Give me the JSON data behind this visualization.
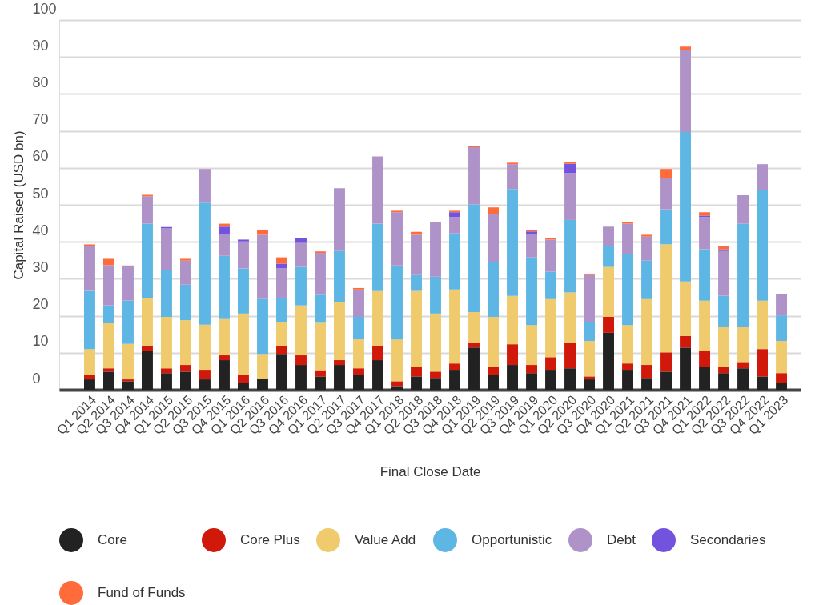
{
  "chart_data": {
    "type": "bar",
    "stacked": true,
    "xlabel": "Final Close Date",
    "ylabel": "Capital Raised (USD bn)",
    "categories": [
      "Q1 2014",
      "Q2 2014",
      "Q3 2014",
      "Q4 2014",
      "Q1 2015",
      "Q2 2015",
      "Q3 2015",
      "Q4 2015",
      "Q1 2016",
      "Q2 2016",
      "Q3 2016",
      "Q4 2016",
      "Q1 2017",
      "Q2 2017",
      "Q3 2017",
      "Q4 2017",
      "Q1 2018",
      "Q2 2018",
      "Q3 2018",
      "Q4 2018",
      "Q1 2019",
      "Q2 2019",
      "Q3 2019",
      "Q4 2019",
      "Q1 2020",
      "Q2 2020",
      "Q3 2020",
      "Q4 2020",
      "Q1 2021",
      "Q2 2021",
      "Q3 2021",
      "Q4 2021",
      "Q1 2022",
      "Q2 2022",
      "Q3 2022",
      "Q4 2022",
      "Q1 2023"
    ],
    "series": [
      {
        "name": "Core",
        "color": "#222222",
        "values": [
          2.8,
          4.9,
          2.3,
          10.6,
          4.5,
          4.9,
          2.8,
          8.0,
          1.9,
          2.8,
          9.7,
          6.7,
          3.6,
          6.7,
          4.1,
          8.0,
          1.0,
          3.6,
          3.2,
          5.4,
          11.4,
          4.1,
          6.7,
          4.5,
          5.4,
          5.8,
          2.8,
          15.4,
          5.4,
          3.2,
          4.9,
          11.4,
          6.2,
          4.5,
          5.8,
          3.6,
          1.9
        ]
      },
      {
        "name": "Core Plus",
        "color": "#d0190a",
        "values": [
          1.3,
          0.9,
          0.5,
          1.3,
          1.3,
          1.8,
          2.6,
          1.3,
          2.2,
          null,
          2.2,
          2.6,
          1.7,
          1.3,
          1.7,
          3.9,
          1.3,
          2.6,
          1.7,
          1.7,
          1.3,
          2.1,
          5.6,
          2.2,
          3.4,
          7.0,
          0.8,
          4.3,
          1.7,
          3.5,
          5.2,
          3.1,
          4.4,
          1.7,
          1.7,
          7.4,
          2.6
        ]
      },
      {
        "name": "Value Add",
        "color": "#efcb6d",
        "values": [
          6.9,
          12.2,
          9.6,
          13.0,
          13.9,
          12.1,
          12.2,
          10.0,
          16.5,
          6.9,
          6.5,
          13.5,
          13.0,
          15.6,
          7.8,
          14.8,
          11.3,
          20.5,
          15.7,
          20.0,
          8.3,
          13.5,
          13.1,
          10.8,
          15.7,
          13.5,
          9.6,
          13.5,
          10.4,
          17.8,
          29.2,
          14.8,
          13.5,
          10.9,
          9.6,
          13.1,
          8.7
        ]
      },
      {
        "name": "Opportunistic",
        "color": "#5eb6e4",
        "values": [
          15.7,
          4.8,
          11.7,
          20.0,
          12.6,
          9.6,
          33.0,
          16.9,
          12.2,
          14.8,
          6.5,
          10.4,
          7.4,
          13.9,
          6.1,
          18.2,
          20.0,
          4.3,
          10.0,
          15.2,
          29.1,
          14.8,
          28.9,
          18.3,
          7.4,
          19.6,
          5.2,
          5.6,
          19.2,
          10.4,
          9.5,
          40.4,
          13.9,
          8.3,
          27.8,
          29.8,
          6.9
        ]
      },
      {
        "name": "Debt",
        "color": "#ae92c8",
        "values": [
          12.1,
          10.9,
          9.5,
          7.4,
          11.3,
          6.5,
          9.1,
          5.7,
          7.3,
          17.4,
          7.9,
          6.5,
          11.3,
          17.0,
          7.4,
          18.2,
          14.4,
          10.9,
          14.8,
          4.4,
          15.5,
          13.0,
          6.7,
          6.1,
          8.7,
          12.7,
          12.6,
          5.3,
          8.2,
          6.5,
          8.4,
          22.2,
          8.7,
          12.1,
          7.7,
          7.1,
          5.7
        ]
      },
      {
        "name": "Secondaries",
        "color": "#7352de",
        "values": [
          null,
          null,
          null,
          null,
          0.4,
          null,
          null,
          2.2,
          0.5,
          null,
          1.3,
          1.3,
          null,
          null,
          null,
          null,
          null,
          null,
          null,
          1.3,
          null,
          null,
          null,
          0.9,
          null,
          2.5,
          null,
          null,
          null,
          null,
          null,
          null,
          0.4,
          0.5,
          null,
          null,
          null
        ]
      },
      {
        "name": "Fund of Funds",
        "color": "#ff6b3a",
        "values": [
          0.5,
          1.7,
          null,
          0.4,
          null,
          0.5,
          null,
          0.8,
          null,
          1.3,
          1.7,
          null,
          0.4,
          null,
          0.4,
          null,
          0.4,
          0.8,
          null,
          0.4,
          0.4,
          1.8,
          0.4,
          0.4,
          0.4,
          0.4,
          0.4,
          null,
          0.5,
          0.5,
          2.5,
          0.9,
          0.9,
          0.8,
          null,
          null,
          null
        ]
      }
    ],
    "ylim": [
      0,
      100
    ],
    "yticks": [
      0,
      10,
      20,
      30,
      40,
      50,
      60,
      70,
      80,
      90,
      100
    ],
    "grid": "y",
    "legend": "bottom"
  }
}
